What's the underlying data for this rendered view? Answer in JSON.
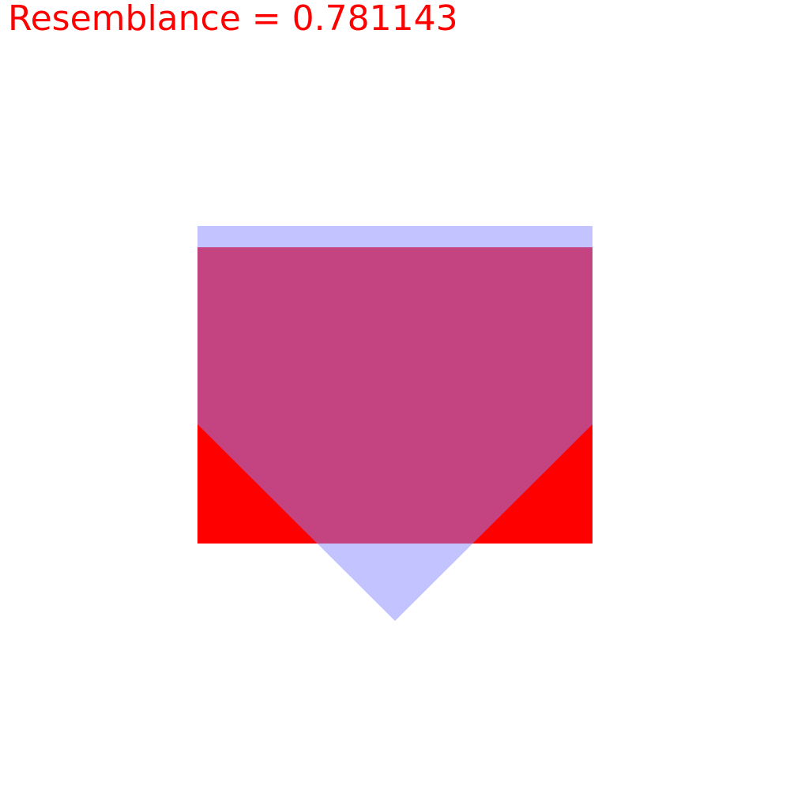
{
  "score_text": "Resemblance = 0.781143",
  "colors": {
    "text": "#ff0000",
    "target_shape": "#ff0000",
    "candidate_shape": "#8888ff",
    "background": "#ffffff"
  }
}
